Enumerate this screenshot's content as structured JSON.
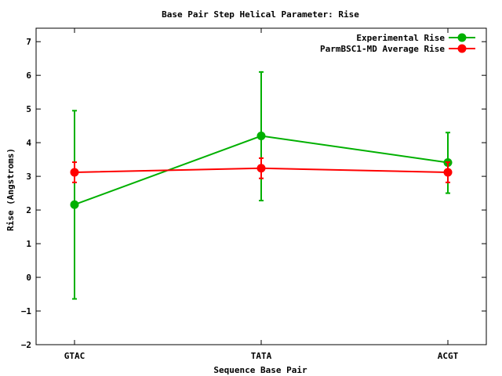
{
  "chart_data": {
    "type": "line",
    "title": "Base Pair Step Helical Parameter: Rise",
    "xlabel": "Sequence Base Pair",
    "ylabel": "Rise (Angstroms)",
    "categories": [
      "GTAC",
      "TATA",
      "ACGT"
    ],
    "ylim": [
      -2,
      7.4
    ],
    "yticks": [
      -2,
      -1,
      0,
      1,
      2,
      3,
      4,
      5,
      6,
      7
    ],
    "grid": false,
    "legend_position": "top-right",
    "series": [
      {
        "name": "Experimental Rise",
        "color": "#00b000",
        "values": [
          2.16,
          4.2,
          3.41
        ],
        "error_low": [
          -0.64,
          2.28,
          2.5
        ],
        "error_high": [
          4.95,
          6.1,
          4.3
        ]
      },
      {
        "name": "ParmBSC1-MD Average Rise",
        "color": "#ff0000",
        "values": [
          3.12,
          3.24,
          3.12
        ],
        "error_low": [
          2.82,
          2.94,
          2.82
        ],
        "error_high": [
          3.42,
          3.54,
          3.42
        ]
      }
    ]
  }
}
